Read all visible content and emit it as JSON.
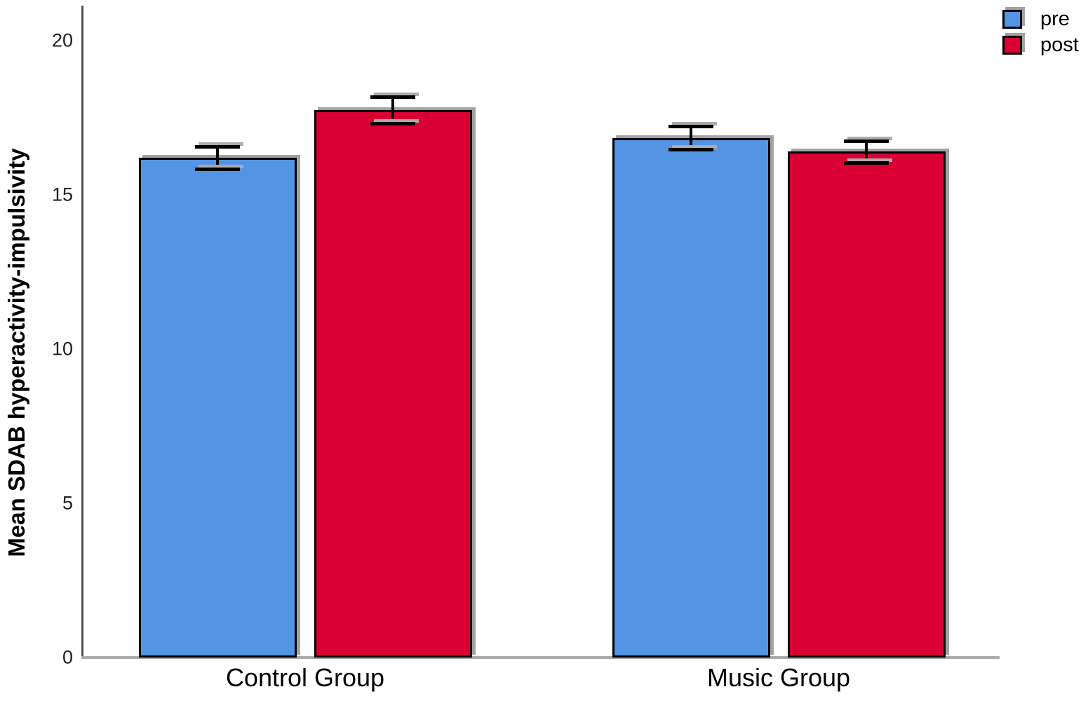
{
  "chart_data": {
    "type": "bar",
    "title": "",
    "categories": [
      "Control Group",
      "Music Group"
    ],
    "series": [
      {
        "name": "pre",
        "color": "#5494E4",
        "values": [
          16.2,
          16.85
        ],
        "errors": [
          0.37,
          0.38
        ]
      },
      {
        "name": "post",
        "color": "#DB0033",
        "values": [
          17.75,
          16.4
        ],
        "errors": [
          0.43,
          0.35
        ]
      }
    ],
    "xlabel": "",
    "ylabel": "Mean SDAB hyperactivity-impulsivity",
    "ylim": [
      0,
      20
    ],
    "yticks": [
      0,
      5,
      10,
      15,
      20
    ],
    "legend_position": "top-right",
    "grid": false,
    "error_bars": true
  }
}
